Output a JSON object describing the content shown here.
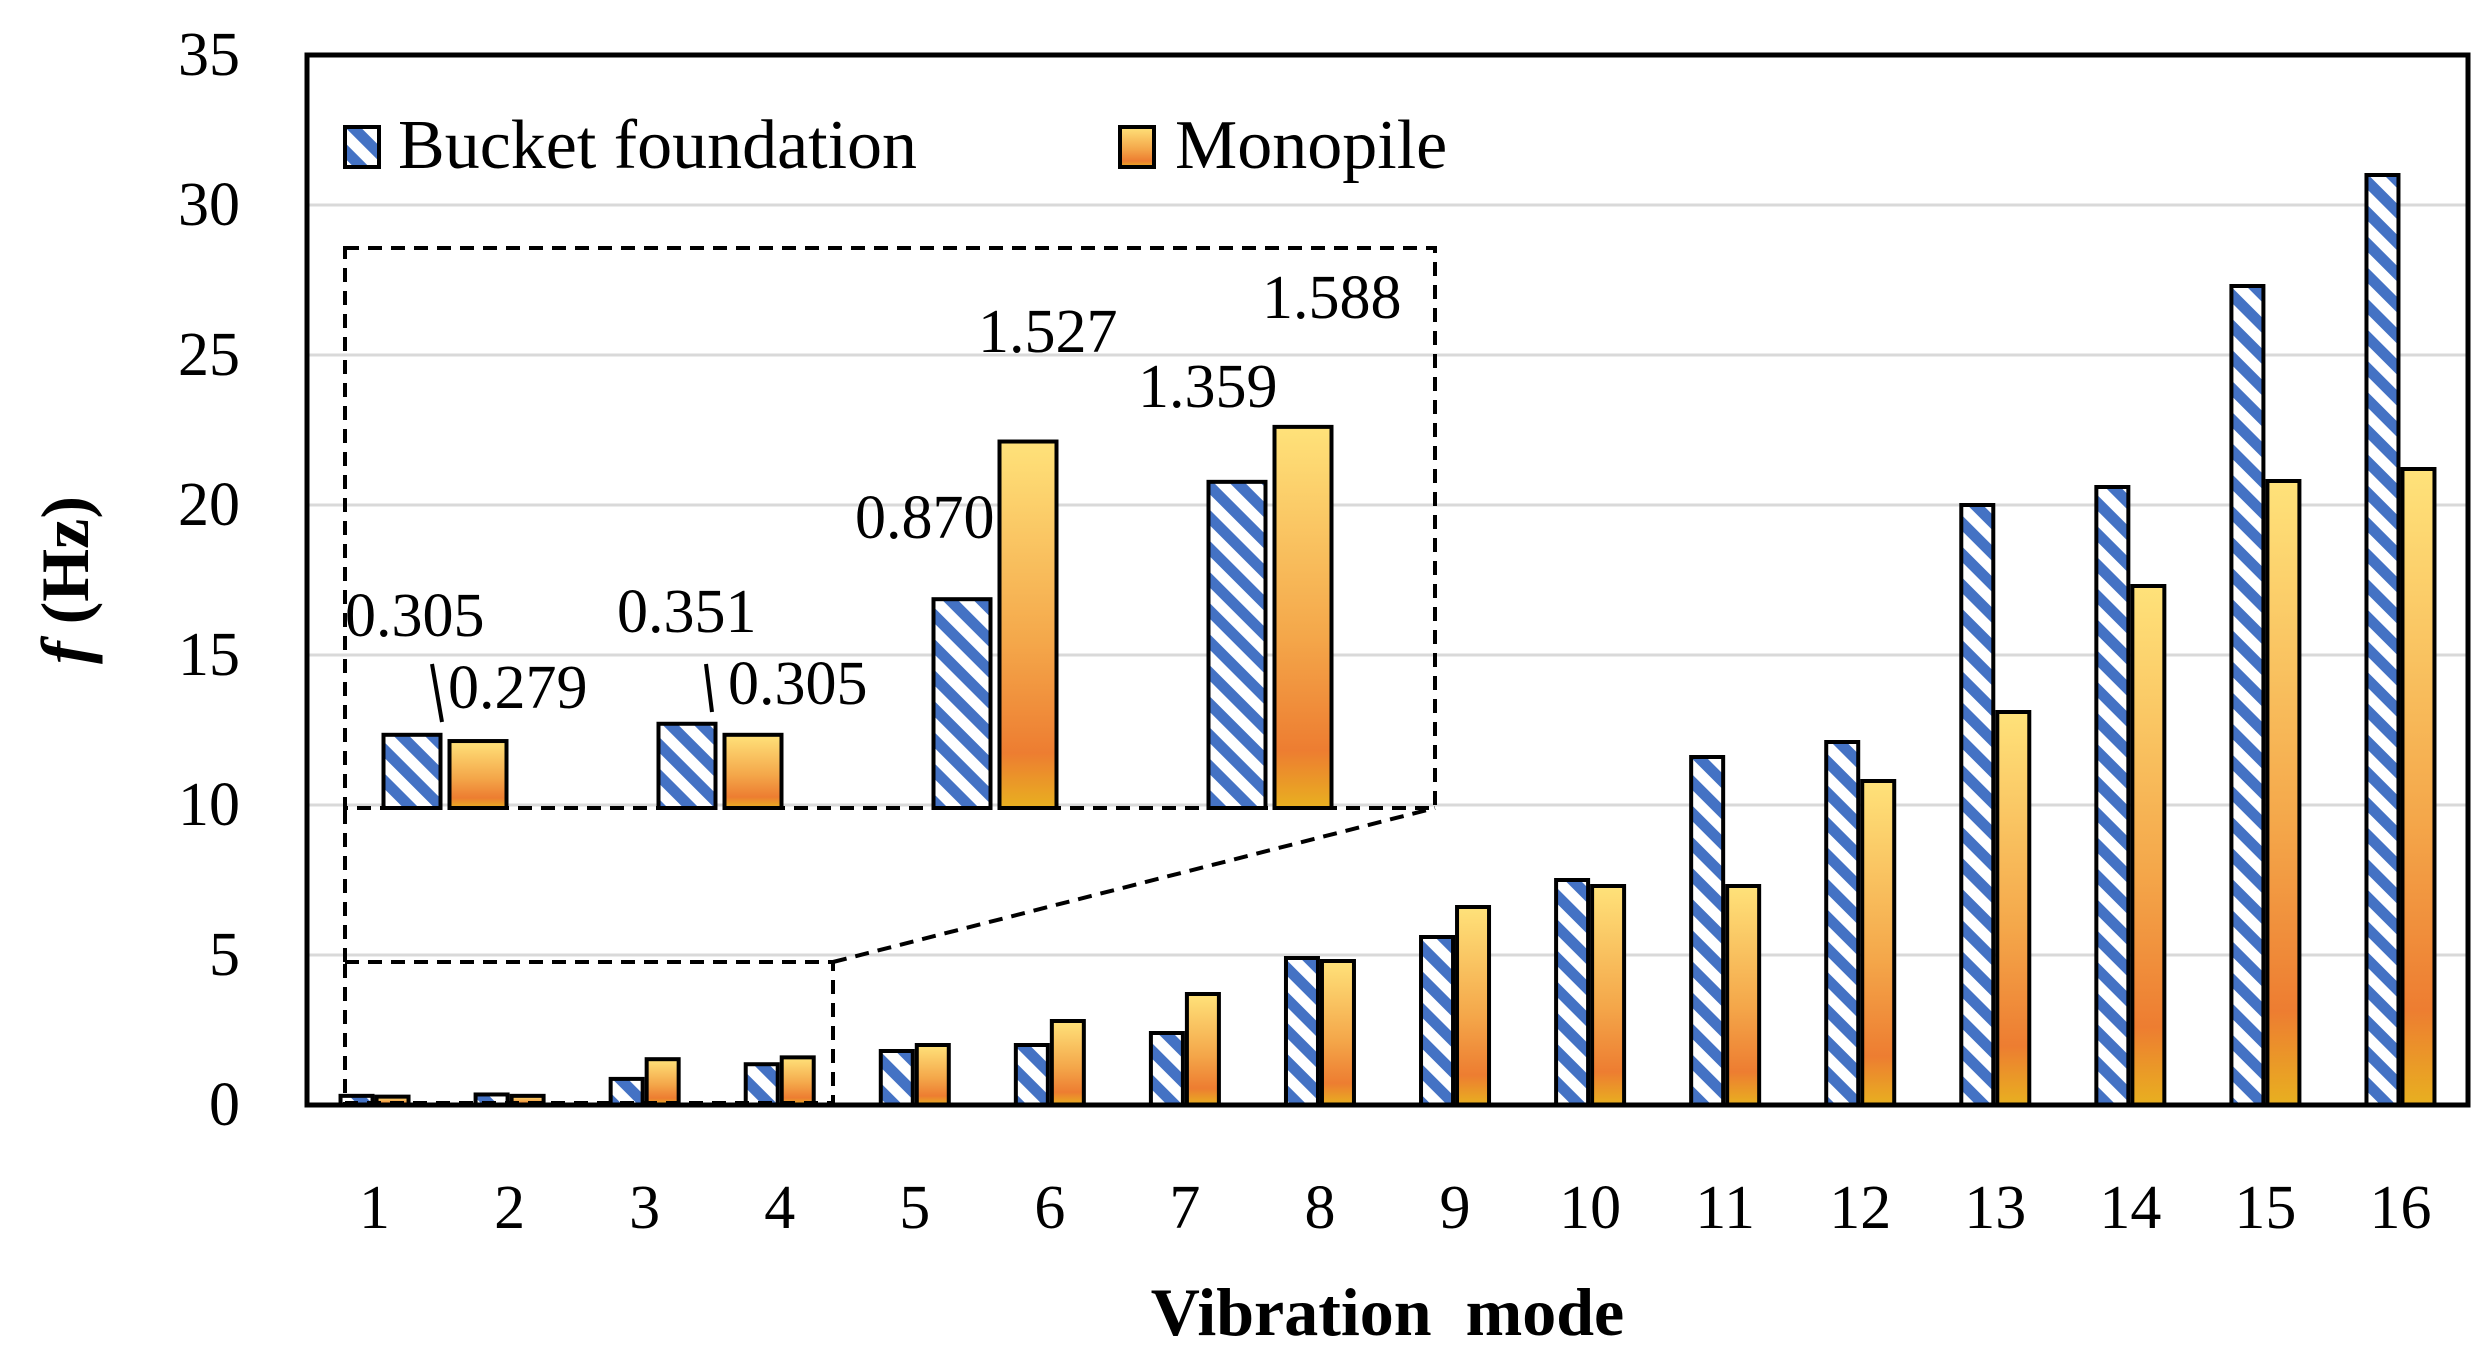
{
  "chart_data": {
    "type": "bar",
    "title": "",
    "xlabel": "Vibration  mode",
    "ylabel_italic": "f",
    "ylabel_rest": " (Hz)",
    "ylim": [
      0,
      35
    ],
    "yticks": [
      "0",
      "5",
      "10",
      "15",
      "20",
      "25",
      "30",
      "35"
    ],
    "grid": true,
    "legend_position": "top-left",
    "categories": [
      "1",
      "2",
      "3",
      "4",
      "5",
      "6",
      "7",
      "8",
      "9",
      "10",
      "11",
      "12",
      "13",
      "14",
      "15",
      "16"
    ],
    "series": [
      {
        "name": "Bucket foundation",
        "pattern": "diagonal-stripes",
        "color": "#4472C4",
        "values": [
          0.305,
          0.351,
          0.87,
          1.359,
          1.8,
          2.0,
          2.4,
          4.9,
          5.6,
          7.5,
          11.6,
          12.1,
          20.0,
          20.6,
          27.3,
          31.0
        ]
      },
      {
        "name": "Monopile",
        "pattern": "gradient",
        "color_top": "#FFD966",
        "color_bottom": "#ED7D31",
        "values": [
          0.279,
          0.305,
          1.527,
          1.588,
          2.0,
          2.8,
          3.7,
          4.8,
          6.6,
          7.3,
          7.3,
          10.8,
          13.1,
          17.3,
          20.8,
          21.2
        ]
      }
    ],
    "inset": {
      "description_range": "modes 1-4 zoomed",
      "labels": [
        {
          "bucket": "0.305",
          "monopile": "0.279"
        },
        {
          "bucket": "0.351",
          "monopile": "0.305"
        },
        {
          "bucket": "0.870",
          "monopile": "1.527"
        },
        {
          "bucket": "1.359",
          "monopile": "1.588"
        }
      ]
    }
  },
  "colors": {
    "grid": "#D9D9D9",
    "axis": "#000000",
    "stripe": "#4472C4"
  }
}
